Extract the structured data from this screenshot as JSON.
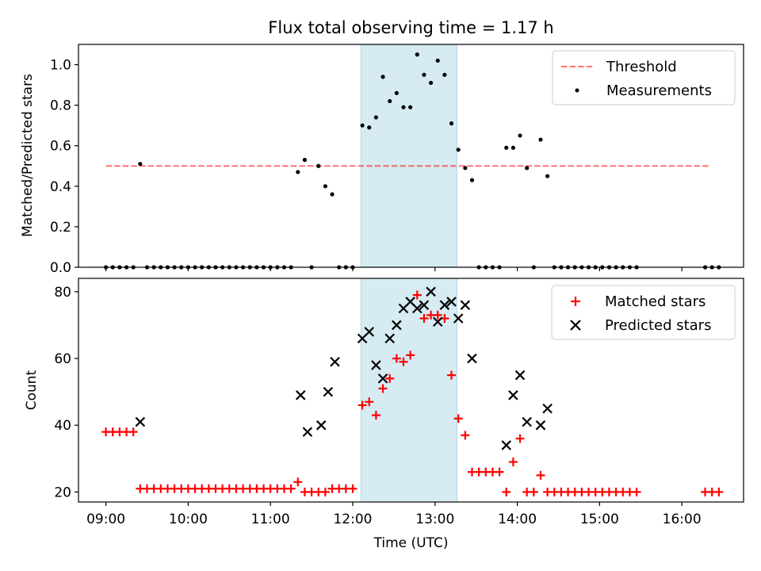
{
  "chart_data": [
    {
      "type": "scatter",
      "title": "Flux total observing time = 1.17 h",
      "xlabel": "",
      "ylabel": "Matched/Predicted stars",
      "ylim": [
        0,
        1.1
      ],
      "yticks": [
        0.0,
        0.2,
        0.4,
        0.6,
        0.8,
        1.0
      ],
      "ytick_labels": [
        "0.0",
        "0.2",
        "0.4",
        "0.6",
        "0.8",
        "1.0"
      ],
      "xlim": [
        "08:40",
        "16:45"
      ],
      "legend_position": "top-right",
      "shaded_span": [
        "12:06",
        "13:16"
      ],
      "shaded_color": "#add8e6",
      "threshold": {
        "name": "Threshold",
        "value": 0.5,
        "x_range": [
          "09:00",
          "16:20"
        ],
        "color": "#ff0000",
        "style": "dashed"
      },
      "series": [
        {
          "name": "Measurements",
          "color": "#000000",
          "marker": "dot",
          "points": [
            [
              "09:00",
              0
            ],
            [
              "09:05",
              0
            ],
            [
              "09:10",
              0
            ],
            [
              "09:15",
              0
            ],
            [
              "09:20",
              0
            ],
            [
              "09:25",
              0.51
            ],
            [
              "09:30",
              0
            ],
            [
              "09:35",
              0
            ],
            [
              "09:40",
              0
            ],
            [
              "09:45",
              0
            ],
            [
              "09:50",
              0
            ],
            [
              "09:55",
              0
            ],
            [
              "10:00",
              0
            ],
            [
              "10:05",
              0
            ],
            [
              "10:10",
              0
            ],
            [
              "10:15",
              0
            ],
            [
              "10:20",
              0
            ],
            [
              "10:25",
              0
            ],
            [
              "10:30",
              0
            ],
            [
              "10:35",
              0
            ],
            [
              "10:40",
              0
            ],
            [
              "10:45",
              0
            ],
            [
              "10:50",
              0
            ],
            [
              "10:55",
              0
            ],
            [
              "11:00",
              0
            ],
            [
              "11:05",
              0
            ],
            [
              "11:10",
              0
            ],
            [
              "11:15",
              0
            ],
            [
              "11:20",
              0.47
            ],
            [
              "11:25",
              0.53
            ],
            [
              "11:30",
              0
            ],
            [
              "11:35",
              0.5
            ],
            [
              "11:40",
              0.4
            ],
            [
              "11:45",
              0.36
            ],
            [
              "11:50",
              0
            ],
            [
              "11:55",
              0
            ],
            [
              "12:00",
              0
            ],
            [
              "12:07",
              0.7
            ],
            [
              "12:12",
              0.69
            ],
            [
              "12:17",
              0.74
            ],
            [
              "12:22",
              0.94
            ],
            [
              "12:27",
              0.82
            ],
            [
              "12:32",
              0.86
            ],
            [
              "12:37",
              0.79
            ],
            [
              "12:42",
              0.79
            ],
            [
              "12:47",
              1.05
            ],
            [
              "12:52",
              0.95
            ],
            [
              "12:57",
              0.91
            ],
            [
              "13:02",
              1.02
            ],
            [
              "13:07",
              0.95
            ],
            [
              "13:12",
              0.71
            ],
            [
              "13:17",
              0.58
            ],
            [
              "13:22",
              0.49
            ],
            [
              "13:27",
              0.43
            ],
            [
              "13:32",
              0
            ],
            [
              "13:37",
              0
            ],
            [
              "13:42",
              0
            ],
            [
              "13:47",
              0
            ],
            [
              "13:52",
              0.59
            ],
            [
              "13:57",
              0.59
            ],
            [
              "14:02",
              0.65
            ],
            [
              "14:07",
              0.49
            ],
            [
              "14:12",
              0
            ],
            [
              "14:17",
              0.63
            ],
            [
              "14:22",
              0.45
            ],
            [
              "14:27",
              0
            ],
            [
              "14:32",
              0
            ],
            [
              "14:37",
              0
            ],
            [
              "14:42",
              0
            ],
            [
              "14:47",
              0
            ],
            [
              "14:52",
              0
            ],
            [
              "14:57",
              0
            ],
            [
              "15:02",
              0
            ],
            [
              "15:07",
              0
            ],
            [
              "15:12",
              0
            ],
            [
              "15:17",
              0
            ],
            [
              "15:22",
              0
            ],
            [
              "15:27",
              0
            ],
            [
              "16:17",
              0
            ],
            [
              "16:22",
              0
            ],
            [
              "16:27",
              0
            ]
          ]
        }
      ]
    },
    {
      "type": "scatter",
      "title": "",
      "xlabel": "Time (UTC)",
      "ylabel": "Count",
      "ylim": [
        17,
        84
      ],
      "yticks": [
        20,
        40,
        60,
        80
      ],
      "ytick_labels": [
        "20",
        "40",
        "60",
        "80"
      ],
      "xlim": [
        "08:40",
        "16:45"
      ],
      "xticks": [
        "09:00",
        "10:00",
        "11:00",
        "12:00",
        "13:00",
        "14:00",
        "15:00",
        "16:00"
      ],
      "xtick_labels": [
        "09:00",
        "10:00",
        "11:00",
        "12:00",
        "13:00",
        "14:00",
        "15:00",
        "16:00"
      ],
      "legend_position": "top-right",
      "shaded_span": [
        "12:06",
        "13:16"
      ],
      "shaded_color": "#add8e6",
      "series": [
        {
          "name": "Matched stars",
          "color": "#ff0000",
          "marker": "plus",
          "points": [
            [
              "09:00",
              38
            ],
            [
              "09:05",
              38
            ],
            [
              "09:10",
              38
            ],
            [
              "09:15",
              38
            ],
            [
              "09:20",
              38
            ],
            [
              "09:25",
              21
            ],
            [
              "09:30",
              21
            ],
            [
              "09:35",
              21
            ],
            [
              "09:40",
              21
            ],
            [
              "09:45",
              21
            ],
            [
              "09:50",
              21
            ],
            [
              "09:55",
              21
            ],
            [
              "10:00",
              21
            ],
            [
              "10:05",
              21
            ],
            [
              "10:10",
              21
            ],
            [
              "10:15",
              21
            ],
            [
              "10:20",
              21
            ],
            [
              "10:25",
              21
            ],
            [
              "10:30",
              21
            ],
            [
              "10:35",
              21
            ],
            [
              "10:40",
              21
            ],
            [
              "10:45",
              21
            ],
            [
              "10:50",
              21
            ],
            [
              "10:55",
              21
            ],
            [
              "11:00",
              21
            ],
            [
              "11:05",
              21
            ],
            [
              "11:10",
              21
            ],
            [
              "11:15",
              21
            ],
            [
              "11:20",
              23
            ],
            [
              "11:25",
              20
            ],
            [
              "11:30",
              20
            ],
            [
              "11:35",
              20
            ],
            [
              "11:40",
              20
            ],
            [
              "11:45",
              21
            ],
            [
              "11:50",
              21
            ],
            [
              "11:55",
              21
            ],
            [
              "12:00",
              21
            ],
            [
              "12:07",
              46
            ],
            [
              "12:12",
              47
            ],
            [
              "12:17",
              43
            ],
            [
              "12:22",
              51
            ],
            [
              "12:27",
              54
            ],
            [
              "12:32",
              60
            ],
            [
              "12:37",
              59
            ],
            [
              "12:42",
              61
            ],
            [
              "12:47",
              79
            ],
            [
              "12:52",
              72
            ],
            [
              "12:57",
              73
            ],
            [
              "13:02",
              73
            ],
            [
              "13:07",
              72
            ],
            [
              "13:12",
              55
            ],
            [
              "13:17",
              42
            ],
            [
              "13:22",
              37
            ],
            [
              "13:27",
              26
            ],
            [
              "13:32",
              26
            ],
            [
              "13:37",
              26
            ],
            [
              "13:42",
              26
            ],
            [
              "13:47",
              26
            ],
            [
              "13:52",
              20
            ],
            [
              "13:57",
              29
            ],
            [
              "14:02",
              36
            ],
            [
              "14:07",
              20
            ],
            [
              "14:12",
              20
            ],
            [
              "14:17",
              25
            ],
            [
              "14:22",
              20
            ],
            [
              "14:27",
              20
            ],
            [
              "14:32",
              20
            ],
            [
              "14:37",
              20
            ],
            [
              "14:42",
              20
            ],
            [
              "14:47",
              20
            ],
            [
              "14:52",
              20
            ],
            [
              "14:57",
              20
            ],
            [
              "15:02",
              20
            ],
            [
              "15:07",
              20
            ],
            [
              "15:12",
              20
            ],
            [
              "15:17",
              20
            ],
            [
              "15:22",
              20
            ],
            [
              "15:27",
              20
            ],
            [
              "16:17",
              20
            ],
            [
              "16:22",
              20
            ],
            [
              "16:27",
              20
            ]
          ]
        },
        {
          "name": "Predicted stars",
          "color": "#000000",
          "marker": "x",
          "points": [
            [
              "09:25",
              41
            ],
            [
              "11:22",
              49
            ],
            [
              "11:27",
              38
            ],
            [
              "11:37",
              40
            ],
            [
              "11:42",
              50
            ],
            [
              "11:47",
              59
            ],
            [
              "12:07",
              66
            ],
            [
              "12:12",
              68
            ],
            [
              "12:17",
              58
            ],
            [
              "12:22",
              54
            ],
            [
              "12:27",
              66
            ],
            [
              "12:32",
              70
            ],
            [
              "12:37",
              75
            ],
            [
              "12:42",
              77
            ],
            [
              "12:47",
              75
            ],
            [
              "12:52",
              76
            ],
            [
              "12:57",
              80
            ],
            [
              "13:02",
              71
            ],
            [
              "13:07",
              76
            ],
            [
              "13:12",
              77
            ],
            [
              "13:17",
              72
            ],
            [
              "13:22",
              76
            ],
            [
              "13:27",
              60
            ],
            [
              "13:52",
              34
            ],
            [
              "13:57",
              49
            ],
            [
              "14:02",
              55
            ],
            [
              "14:07",
              41
            ],
            [
              "14:17",
              40
            ],
            [
              "14:22",
              45
            ]
          ]
        }
      ]
    }
  ]
}
